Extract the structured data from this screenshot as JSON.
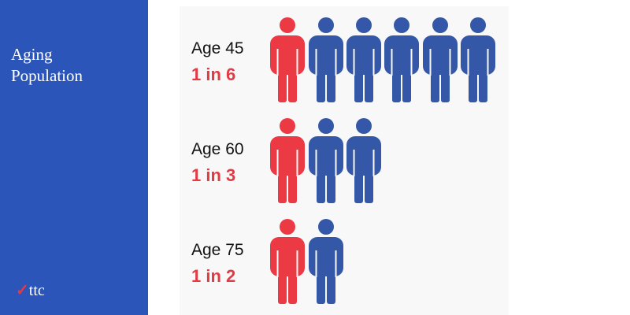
{
  "sidebar": {
    "title": "Aging Population",
    "logo": "ttc"
  },
  "rows": [
    {
      "label": "Age 45",
      "ratio": "1 in 6"
    },
    {
      "label": "Age 60",
      "ratio": "1 in 3"
    },
    {
      "label": "Age 75",
      "ratio": "1 in 2"
    }
  ]
}
